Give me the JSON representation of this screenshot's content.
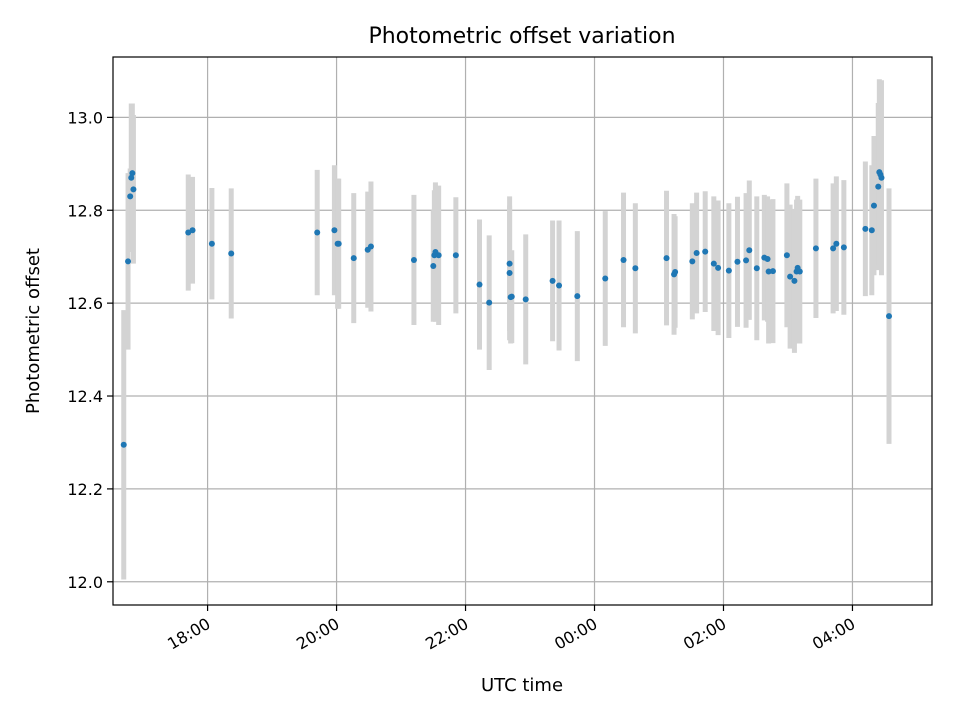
{
  "chart_data": {
    "type": "scatter",
    "title": "Photometric offset variation",
    "xlabel": "UTC time",
    "ylabel": "Photometric offset",
    "x_axis_kind": "time",
    "xlim": [
      "16:32",
      "05:14"
    ],
    "ylim": [
      11.95,
      13.13
    ],
    "grid": true,
    "x_ticks": [
      "18:00",
      "20:00",
      "22:00",
      "00:00",
      "02:00",
      "04:00"
    ],
    "x_tick_values": [
      "18:00",
      "20:00",
      "22:00",
      "00:00",
      "02:00",
      "04:00"
    ],
    "y_ticks": [
      "12.0",
      "12.2",
      "12.4",
      "12.6",
      "12.8",
      "13.0"
    ],
    "y_tick_values": [
      12.0,
      12.2,
      12.4,
      12.6,
      12.8,
      13.0
    ],
    "colors": {
      "points": "#1f77b4",
      "error_bars": "#d3d3d3",
      "grid": "#b0b0b0"
    },
    "series": [
      {
        "x": [
          "16:42",
          "16:46",
          "16:48",
          "16:49",
          "16:50",
          "16:51",
          "17:42",
          "17:46",
          "18:04",
          "18:22",
          "19:42",
          "19:58",
          "20:01",
          "20:02",
          "20:16",
          "20:29",
          "20:32",
          "21:12",
          "21:30",
          "21:31",
          "21:32",
          "21:35",
          "21:51",
          "22:13",
          "22:22",
          "22:41",
          "22:41",
          "22:42",
          "22:43",
          "22:56",
          "23:21",
          "23:27",
          "23:44",
          "00:10",
          "00:27",
          "00:38",
          "01:07",
          "01:14",
          "01:15",
          "01:31",
          "01:35",
          "01:43",
          "01:51",
          "01:55",
          "02:05",
          "02:13",
          "02:21",
          "02:24",
          "02:31",
          "02:38",
          "02:41",
          "02:42",
          "02:46",
          "02:59",
          "03:02",
          "03:06",
          "03:08",
          "03:09",
          "03:11",
          "03:26",
          "03:42",
          "03:45",
          "03:52",
          "04:12",
          "04:18",
          "04:20",
          "04:24",
          "04:25",
          "04:26",
          "04:27",
          "04:34"
        ],
        "y": [
          12.295,
          12.69,
          12.83,
          12.87,
          12.88,
          12.845,
          12.752,
          12.757,
          12.728,
          12.707,
          12.752,
          12.757,
          12.728,
          12.728,
          12.697,
          12.715,
          12.722,
          12.693,
          12.68,
          12.703,
          12.71,
          12.703,
          12.703,
          12.64,
          12.601,
          12.685,
          12.665,
          12.613,
          12.614,
          12.608,
          12.648,
          12.638,
          12.615,
          12.653,
          12.693,
          12.675,
          12.697,
          12.662,
          12.667,
          12.69,
          12.708,
          12.711,
          12.685,
          12.676,
          12.67,
          12.689,
          12.692,
          12.714,
          12.675,
          12.698,
          12.695,
          12.668,
          12.669,
          12.703,
          12.657,
          12.648,
          12.668,
          12.676,
          12.668,
          12.718,
          12.718,
          12.728,
          12.72,
          12.76,
          12.757,
          12.81,
          12.851,
          12.882,
          12.877,
          12.87,
          12.572
        ],
        "y_error": [
          0.29,
          0.19,
          0.06,
          0.16,
          0.15,
          0.16,
          0.125,
          0.115,
          0.12,
          0.14,
          0.135,
          0.14,
          0.14,
          0.14,
          0.14,
          0.125,
          0.14,
          0.14,
          0.12,
          0.14,
          0.15,
          0.15,
          0.125,
          0.14,
          0.145,
          0.145,
          0.145,
          0.1,
          0.1,
          0.14,
          0.13,
          0.14,
          0.14,
          0.145,
          0.145,
          0.14,
          0.145,
          0.13,
          0.12,
          0.125,
          0.13,
          0.13,
          0.145,
          0.145,
          0.145,
          0.14,
          0.145,
          0.15,
          0.155,
          0.135,
          0.135,
          0.155,
          0.155,
          0.155,
          0.155,
          0.155,
          0.155,
          0.155,
          0.155,
          0.15,
          0.14,
          0.145,
          0.145,
          0.145,
          0.14,
          0.15,
          0.18,
          0.2,
          0.2,
          0.21,
          0.275
        ]
      }
    ]
  }
}
